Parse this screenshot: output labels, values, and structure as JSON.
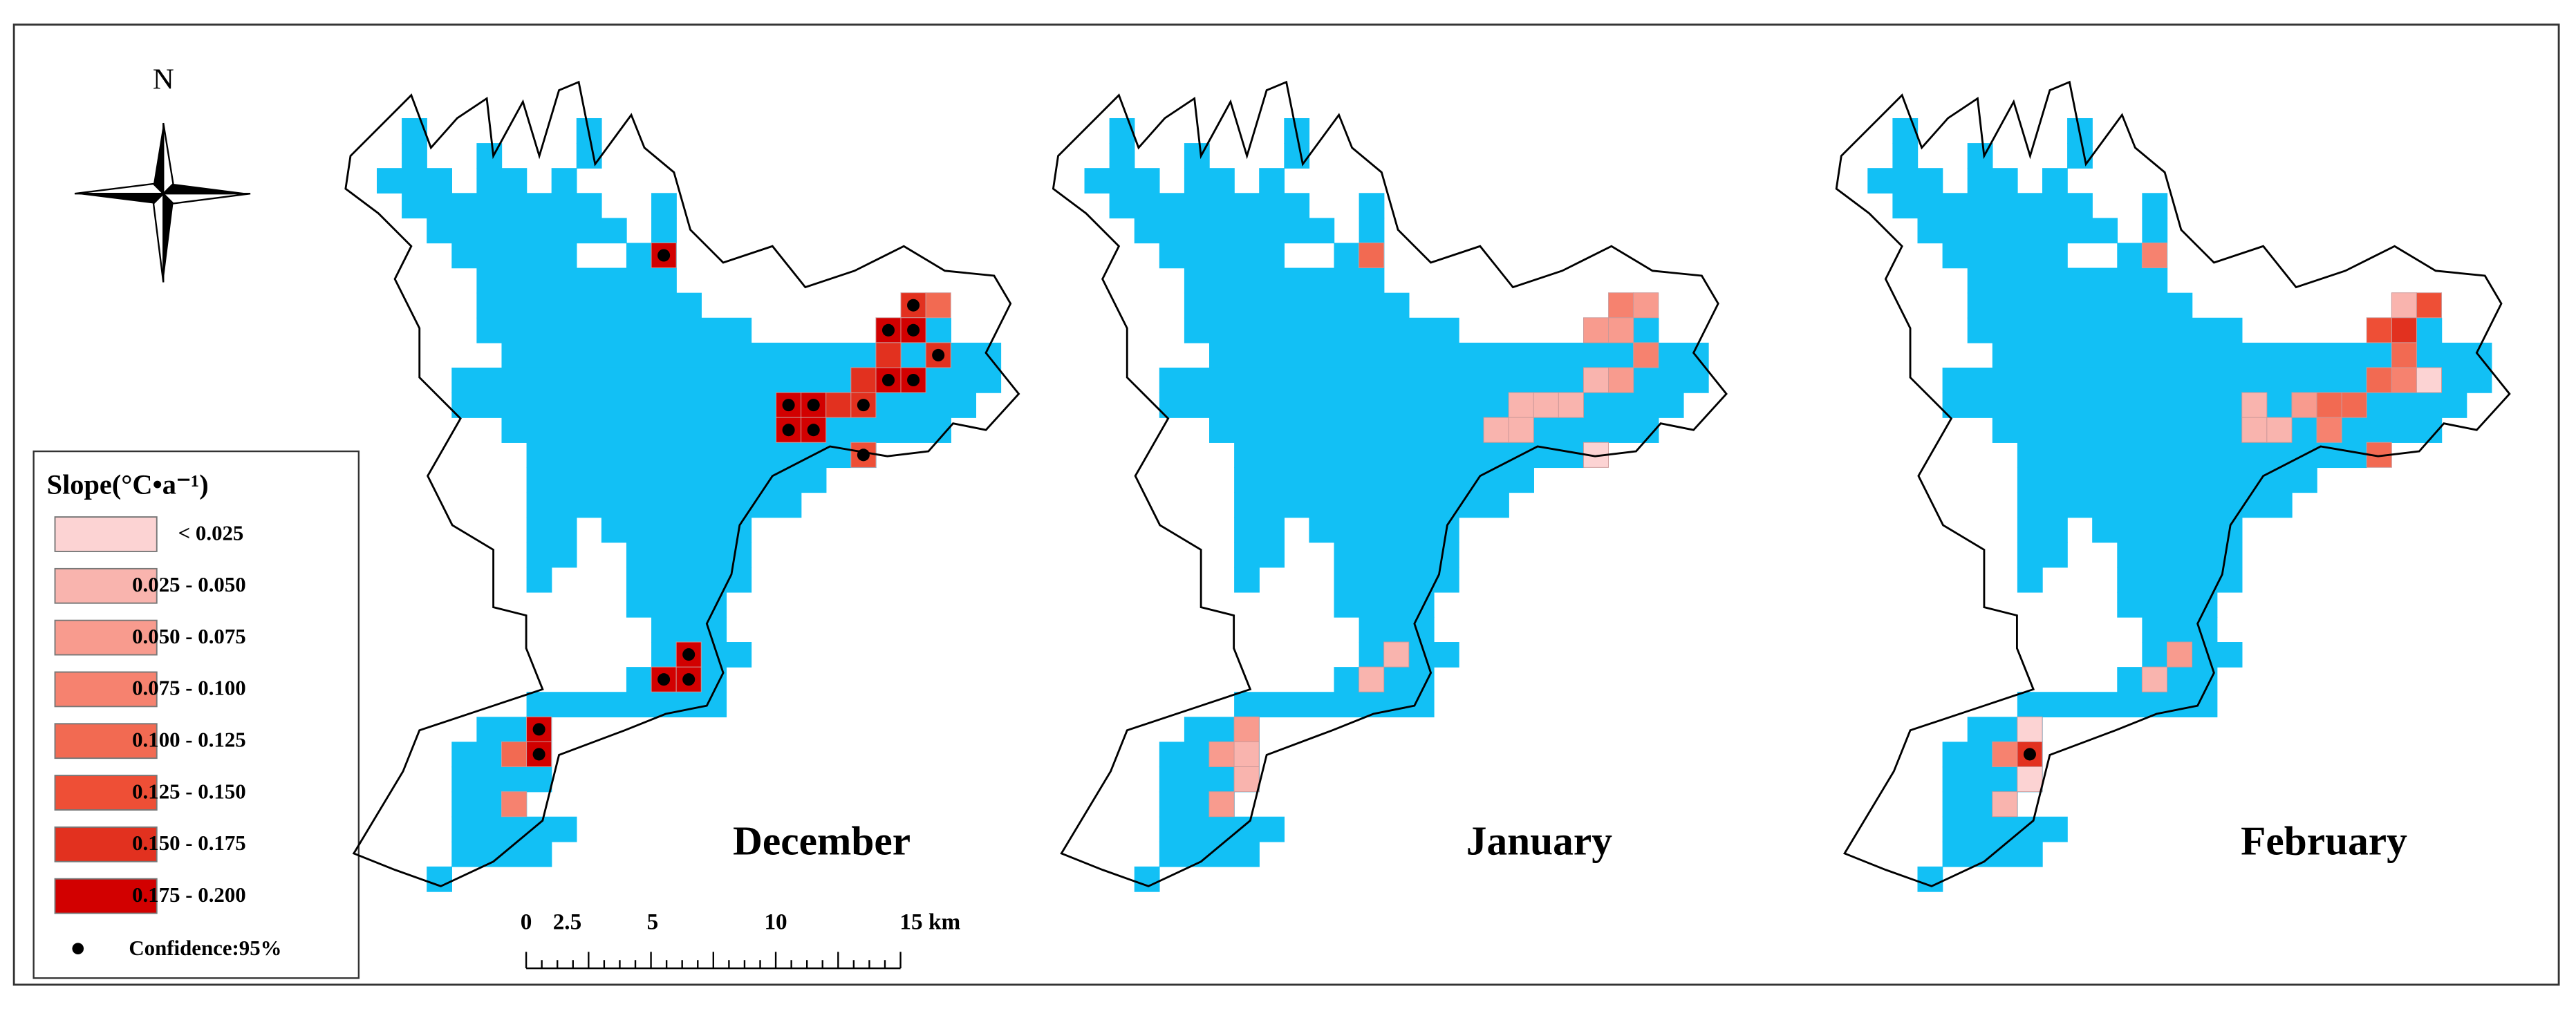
{
  "north": "N",
  "panels": [
    {
      "title": "December"
    },
    {
      "title": "January"
    },
    {
      "title": "February"
    }
  ],
  "legend": {
    "title": "Slope(°C•a⁻¹)",
    "items": [
      {
        "label": "< 0.025",
        "color": "#fcd3d3"
      },
      {
        "label": "0.025 - 0.050",
        "color": "#f9b4ae"
      },
      {
        "label": "0.050 - 0.075",
        "color": "#f89b8e"
      },
      {
        "label": "0.075 - 0.100",
        "color": "#f6826f"
      },
      {
        "label": "0.100 - 0.125",
        "color": "#f26a52"
      },
      {
        "label": "0.125 - 0.150",
        "color": "#ee4f36"
      },
      {
        "label": "0.150 - 0.175",
        "color": "#e2311f"
      },
      {
        "label": "0.175 - 0.200",
        "color": "#d20000"
      }
    ],
    "confidence": "Confidence:95%"
  },
  "scale_bar": {
    "labels": [
      "0",
      "2.5",
      "5",
      "10",
      "15 km"
    ]
  },
  "glacier_color": "#12c0f5"
}
